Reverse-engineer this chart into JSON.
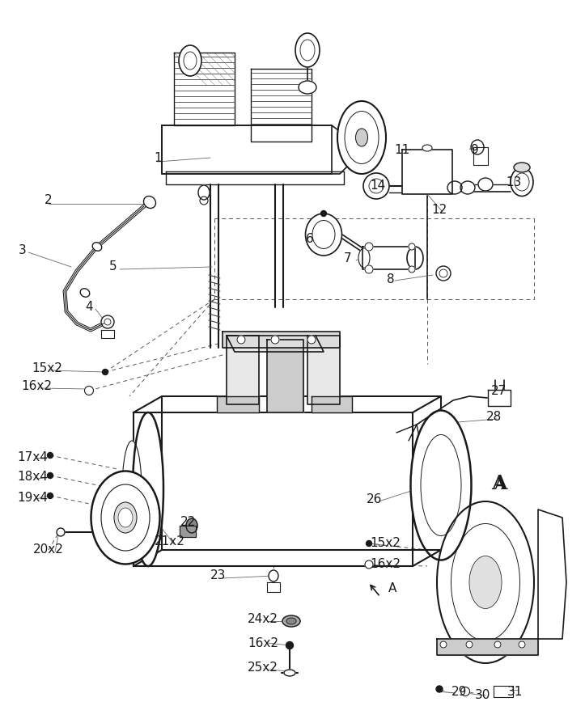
{
  "bg_color": "#ffffff",
  "line_color": "#1a1a1a",
  "label_color": "#1a1a1a",
  "figsize": [
    7.23,
    8.94
  ],
  "dpi": 100,
  "labels_main": [
    [
      "1",
      195,
      195
    ],
    [
      "2",
      60,
      248
    ],
    [
      "3",
      28,
      310
    ],
    [
      "4",
      110,
      380
    ],
    [
      "5",
      140,
      330
    ],
    [
      "6",
      383,
      295
    ],
    [
      "7",
      430,
      320
    ],
    [
      "8",
      483,
      345
    ],
    [
      "9",
      587,
      185
    ],
    [
      "11",
      497,
      185
    ],
    [
      "12",
      543,
      260
    ],
    [
      "13",
      635,
      225
    ],
    [
      "14",
      467,
      230
    ],
    [
      "15x2",
      58,
      455
    ],
    [
      "16x2",
      45,
      478
    ],
    [
      "17x4",
      40,
      565
    ],
    [
      "18x4",
      40,
      590
    ],
    [
      "19x4",
      40,
      615
    ],
    [
      "20x2",
      60,
      680
    ],
    [
      "21x2",
      210,
      670
    ],
    [
      "22",
      233,
      645
    ],
    [
      "23",
      270,
      712
    ],
    [
      "24x2",
      325,
      765
    ],
    [
      "16x2",
      325,
      795
    ],
    [
      "25x2",
      325,
      825
    ],
    [
      "26",
      463,
      618
    ],
    [
      "27",
      616,
      483
    ],
    [
      "28",
      610,
      515
    ],
    [
      "15x2",
      476,
      672
    ],
    [
      "16x2",
      476,
      698
    ],
    [
      "A",
      485,
      727
    ],
    [
      "29",
      568,
      855
    ],
    [
      "30",
      596,
      860
    ],
    [
      "31",
      636,
      855
    ],
    [
      "A",
      617,
      600
    ]
  ]
}
